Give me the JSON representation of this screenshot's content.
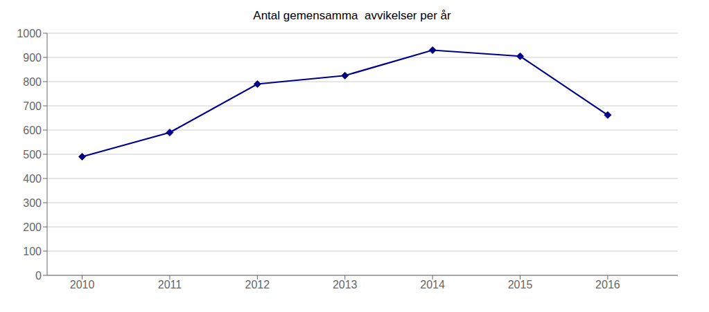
{
  "chart_data": {
    "type": "line",
    "title": "Antal gemensamma  avvikelser per år",
    "x": [
      2010,
      2011,
      2012,
      2013,
      2014,
      2015,
      2016
    ],
    "values": [
      490,
      590,
      790,
      825,
      930,
      905,
      662
    ],
    "color": "#00008B",
    "marker": "diamond",
    "xlim": [
      2009.6,
      2016.8
    ],
    "xticks": [
      2010,
      2011,
      2012,
      2013,
      2014,
      2015,
      2016
    ],
    "ylim": [
      0,
      1000
    ],
    "yticks": [
      0,
      100,
      200,
      300,
      400,
      500,
      600,
      700,
      800,
      900,
      1000
    ],
    "grid": true
  }
}
